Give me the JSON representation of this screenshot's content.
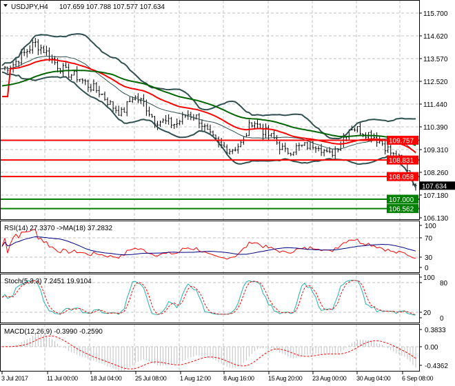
{
  "header": {
    "symbol": "USDJPY,H4",
    "ohlc": "107.659 107.788 107.577 107.634"
  },
  "price_axis": [
    "115.700",
    "114.620",
    "113.570",
    "112.520",
    "111.440",
    "110.390",
    "109.310",
    "108.260",
    "107.180",
    "106.130"
  ],
  "levels": [
    {
      "value": "109.757",
      "price": 109.757,
      "color": "#ff0000"
    },
    {
      "value": "108.831",
      "price": 108.831,
      "color": "#ff0000"
    },
    {
      "value": "108.058",
      "price": 108.058,
      "color": "#ff0000"
    },
    {
      "value": "107.000",
      "price": 107.0,
      "color": "#008000"
    },
    {
      "value": "106.562",
      "price": 106.562,
      "color": "#008000"
    }
  ],
  "current_price": {
    "value": "107.634",
    "price": 107.634
  },
  "rsi": {
    "label": "RSI(14) 27.3370  ->MA(18) 37.2832",
    "axis": [
      "100",
      "70",
      "30",
      "0"
    ]
  },
  "stoch": {
    "label": "Stoch(5,3,3) 7.2451 19.9104",
    "axis": [
      "100",
      "80",
      "20",
      "0"
    ]
  },
  "macd": {
    "label": "MACD(12,26,9) -0.3990 -0.2590",
    "axis": [
      "0.3833",
      "0.00",
      "-0.4362"
    ]
  },
  "time_axis": [
    "3 Jul 2017",
    "11 Jul 00:00",
    "18 Jul 04:00",
    "25 Jul 08:00",
    "1 Aug 12:00",
    "8 Aug 16:00",
    "15 Aug 20:00",
    "23 Aug 00:00",
    "30 Aug 04:00",
    "6 Sep 08:00"
  ],
  "chart_data": {
    "type": "line",
    "title": "USDJPY,H4",
    "ylim": [
      106.13,
      115.7
    ],
    "close_path": [
      113.1,
      113.3,
      113.8,
      114.3,
      113.9,
      113.3,
      112.9,
      112.7,
      112.3,
      112.0,
      111.4,
      111.0,
      111.8,
      111.5,
      110.7,
      110.6,
      110.5,
      111.0,
      110.8,
      110.0,
      109.5,
      109.3,
      109.6,
      110.7,
      110.2,
      109.8,
      109.2,
      109.4,
      109.5,
      109.6,
      109.0,
      109.6,
      110.4,
      110.2,
      110.0,
      109.6,
      109.0,
      108.7,
      107.6
    ],
    "series": [
      {
        "name": "Price",
        "color": "#000000"
      },
      {
        "name": "MA fast",
        "color": "#ff0000"
      },
      {
        "name": "MA slow",
        "color": "#006400"
      },
      {
        "name": "Bands",
        "color": "#2f4f4f"
      }
    ],
    "colors": {
      "rsi": "#ff0000",
      "rsi_ma": "#000080",
      "stoch_main": "#20b2aa",
      "stoch_signal": "#ff0000",
      "macd_hist": "#c0c0c0",
      "macd_signal": "#ff0000"
    }
  }
}
